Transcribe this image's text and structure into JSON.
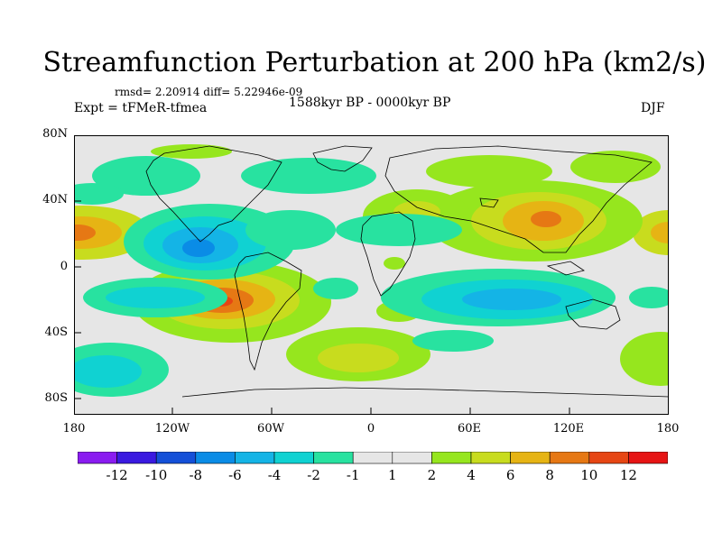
{
  "title": "Streamfunction Perturbation at 200 hPa (km2/s)",
  "stats": "rmsd= 2.20914 diff= 5.22946e-09",
  "experiment": "Expt = tFMeR-tfmea",
  "period": "1588kyr BP - 0000kyr BP",
  "season": "DJF",
  "lat_labels": [
    "80N",
    "40N",
    "0",
    "40S",
    "80S"
  ],
  "lon_labels": [
    "180",
    "120W",
    "60W",
    "0",
    "60E",
    "120E",
    "180"
  ],
  "colorbar": {
    "labels": [
      "-12",
      "-10",
      "-8",
      "-6",
      "-4",
      "-2",
      "-1",
      "1",
      "2",
      "4",
      "6",
      "8",
      "10",
      "12"
    ],
    "colors": [
      "#8a1cf0",
      "#3a1ae0",
      "#1450d8",
      "#0a8ce6",
      "#14b4e6",
      "#10d2d2",
      "#28e2a0",
      "#e6e6e6",
      "#96e61e",
      "#c8dc1e",
      "#e6b414",
      "#e67814",
      "#e64614",
      "#e61414"
    ]
  },
  "colors": {
    "background_field": "#e6e6e6",
    "coastline": "#000000"
  },
  "icons": {
    "continents": "coastline-outline"
  }
}
